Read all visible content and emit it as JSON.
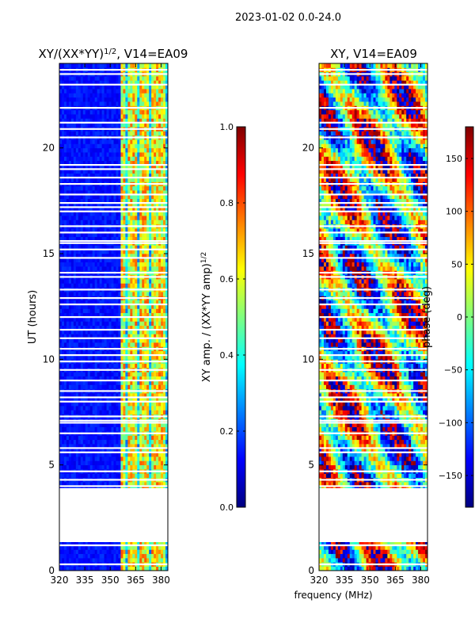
{
  "chart_data": {
    "suptitle": "2023-01-02 0.0-24.0",
    "shared_xlabel": "frequency (MHz)",
    "panels": [
      {
        "type": "heatmap",
        "title": "XY/(XX*YY)",
        "title_sup": "1/2",
        "title_suffix": ", V14=EA09",
        "ylabel": "UT (hours)",
        "xlim": [
          320,
          384
        ],
        "ylim": [
          0,
          24
        ],
        "xticks": [
          "320",
          "335",
          "350",
          "365",
          "380"
        ],
        "xtick_values": [
          320,
          335,
          350,
          365,
          380
        ],
        "yticks": [
          "0",
          "5",
          "10",
          "15",
          "20"
        ],
        "ytick_values": [
          0,
          5,
          10,
          15,
          20
        ],
        "colorbar": {
          "label": "XY amp. / (XX*YY amp)",
          "label_sup": "1/2",
          "ticks": [
            "0.0",
            "0.2",
            "0.4",
            "0.6",
            "0.8",
            "1.0"
          ],
          "tick_values": [
            0.0,
            0.2,
            0.4,
            0.6,
            0.8,
            1.0
          ],
          "range": [
            0,
            1
          ]
        }
      },
      {
        "type": "heatmap",
        "title": "XY, V14=EA09",
        "ylabel": "",
        "xlim": [
          320,
          384
        ],
        "ylim": [
          0,
          24
        ],
        "xticks": [
          "320",
          "335",
          "350",
          "365",
          "380"
        ],
        "xtick_values": [
          320,
          335,
          350,
          365,
          380
        ],
        "yticks": [
          "0",
          "5",
          "10",
          "15",
          "20"
        ],
        "ytick_values": [
          0,
          5,
          10,
          15,
          20
        ],
        "colorbar": {
          "label": "phase (deg)",
          "ticks": [
            "−150",
            "−100",
            "−50",
            "0",
            "50",
            "100",
            "150"
          ],
          "tick_values": [
            -150,
            -100,
            -50,
            0,
            50,
            100,
            150
          ],
          "range": [
            -180,
            180
          ]
        }
      }
    ],
    "data_gap_hours": [
      1.35,
      3.9
    ],
    "flagged_hours": [
      0.3,
      1.2,
      4.0,
      4.3,
      4.7,
      5.6,
      5.8,
      6.5,
      7.0,
      7.1,
      7.3,
      8.0,
      8.2,
      8.5,
      9.0,
      9.5,
      9.9,
      10.2,
      10.5,
      11.0,
      11.4,
      12.0,
      12.6,
      12.9,
      13.3,
      13.9,
      14.1,
      14.8,
      15.2,
      15.5,
      15.6,
      16.0,
      16.3,
      17.0,
      17.2,
      17.4,
      17.8,
      18.3,
      18.6,
      19.0,
      19.2,
      20.5,
      20.9,
      21.2,
      21.9,
      23.0,
      23.5,
      23.7
    ],
    "bright_channels_mhz": [
      358,
      362,
      365,
      369,
      372,
      375,
      378,
      381
    ]
  }
}
